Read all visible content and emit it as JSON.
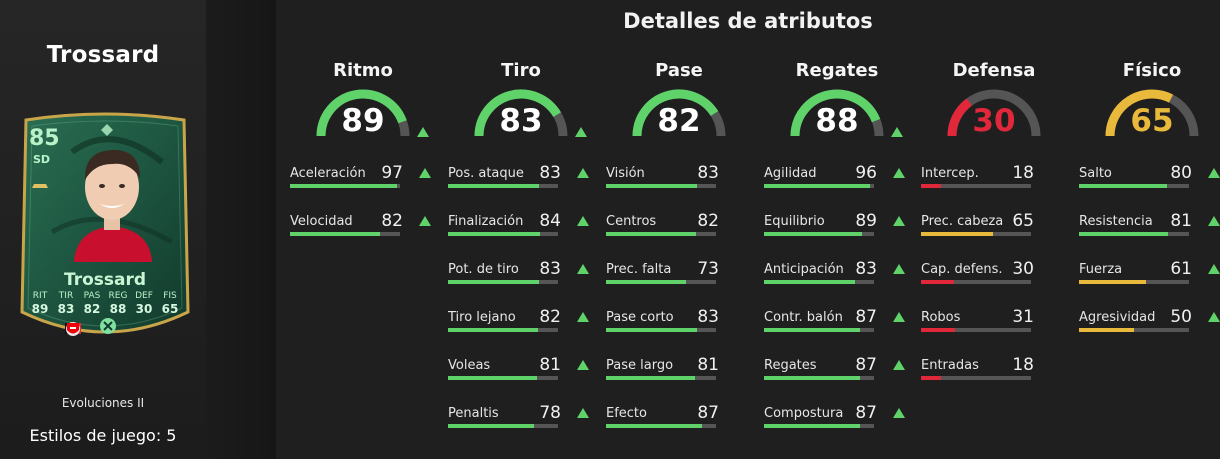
{
  "player": {
    "name": "Trossard",
    "rating": "85",
    "position": "SD",
    "card_name": "Trossard",
    "card_stats": [
      {
        "label": "RIT",
        "value": "89"
      },
      {
        "label": "TIR",
        "value": "83"
      },
      {
        "label": "PAS",
        "value": "82"
      },
      {
        "label": "REG",
        "value": "88"
      },
      {
        "label": "DEF",
        "value": "30"
      },
      {
        "label": "FIS",
        "value": "65"
      }
    ],
    "icons": [
      "belgium-flag-icon",
      "premier-league-icon",
      "arsenal-crest-icon",
      "evolution-icon"
    ]
  },
  "evolution_label": "Evoluciones II",
  "playstyles_label": "Estilos de juego: 5",
  "title": "Detalles de atributos",
  "colors": {
    "green": "#5fd36a",
    "yellow": "#e8b93a",
    "red": "#e0283a",
    "track": "#555555",
    "card_bg": "#1f5a44"
  },
  "categories": [
    {
      "name": "Ritmo",
      "value": "89",
      "color": "#5fd36a",
      "arrow": true,
      "attributes": [
        {
          "name": "Aceleración",
          "value": "97",
          "arrow": true
        },
        {
          "name": "Velocidad",
          "value": "82",
          "arrow": true
        }
      ]
    },
    {
      "name": "Tiro",
      "value": "83",
      "color": "#5fd36a",
      "arrow": true,
      "attributes": [
        {
          "name": "Pos. ataque",
          "value": "83",
          "arrow": true
        },
        {
          "name": "Finalización",
          "value": "84",
          "arrow": true
        },
        {
          "name": "Pot. de tiro",
          "value": "83",
          "arrow": true
        },
        {
          "name": "Tiro lejano",
          "value": "82",
          "arrow": true
        },
        {
          "name": "Voleas",
          "value": "81",
          "arrow": true
        },
        {
          "name": "Penaltis",
          "value": "78",
          "arrow": true
        }
      ]
    },
    {
      "name": "Pase",
      "value": "82",
      "color": "#5fd36a",
      "arrow": false,
      "attributes": [
        {
          "name": "Visión",
          "value": "83",
          "arrow": false
        },
        {
          "name": "Centros",
          "value": "82",
          "arrow": false
        },
        {
          "name": "Prec. falta",
          "value": "73",
          "arrow": false
        },
        {
          "name": "Pase corto",
          "value": "83",
          "arrow": false
        },
        {
          "name": "Pase largo",
          "value": "81",
          "arrow": false
        },
        {
          "name": "Efecto",
          "value": "87",
          "arrow": false
        }
      ]
    },
    {
      "name": "Regates",
      "value": "88",
      "color": "#5fd36a",
      "arrow": true,
      "attributes": [
        {
          "name": "Agilidad",
          "value": "96",
          "arrow": true
        },
        {
          "name": "Equilibrio",
          "value": "89",
          "arrow": true
        },
        {
          "name": "Anticipación",
          "value": "83",
          "arrow": true
        },
        {
          "name": "Contr. balón",
          "value": "87",
          "arrow": true
        },
        {
          "name": "Regates",
          "value": "87",
          "arrow": true
        },
        {
          "name": "Compostura",
          "value": "87",
          "arrow": true
        }
      ]
    },
    {
      "name": "Defensa",
      "value": "30",
      "color": "#e0283a",
      "arrow": false,
      "attributes": [
        {
          "name": "Intercep.",
          "value": "18",
          "arrow": false
        },
        {
          "name": "Prec. cabeza",
          "value": "65",
          "arrow": false
        },
        {
          "name": "Cap. defens.",
          "value": "30",
          "arrow": false
        },
        {
          "name": "Robos",
          "value": "31",
          "arrow": false
        },
        {
          "name": "Entradas",
          "value": "18",
          "arrow": false
        }
      ]
    },
    {
      "name": "Físico",
      "value": "65",
      "color": "#e8b93a",
      "arrow": false,
      "attributes": [
        {
          "name": "Salto",
          "value": "80",
          "arrow": true
        },
        {
          "name": "Resistencia",
          "value": "81",
          "arrow": true
        },
        {
          "name": "Fuerza",
          "value": "61",
          "arrow": true
        },
        {
          "name": "Agresividad",
          "value": "50",
          "arrow": true
        }
      ]
    }
  ]
}
